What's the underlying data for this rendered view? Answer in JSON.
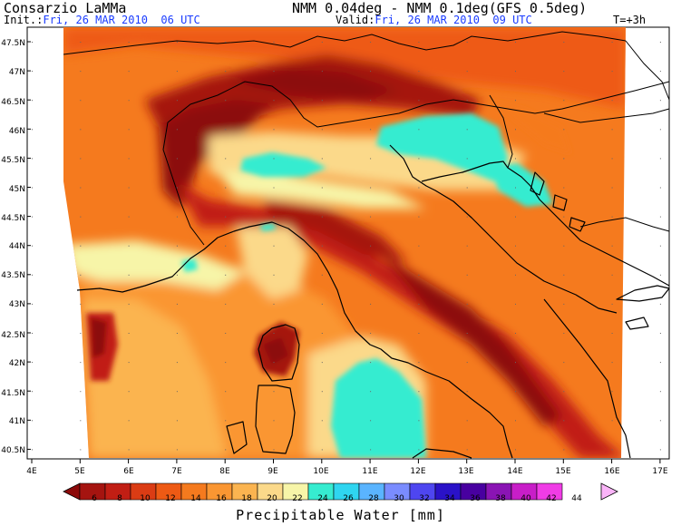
{
  "header": {
    "source": "Consarzio LaMMa",
    "init_label": "Init.:",
    "init_value": "Fri, 26 MAR 2010  06 UTC",
    "model": "NMM 0.04deg - NMM 0.1deg(GFS 0.5deg)",
    "valid_label": "Valid:",
    "valid_value": "Fri, 26 MAR 2010  09 UTC",
    "step": "T=+3h"
  },
  "map": {
    "lat_labels": [
      "47.5N",
      "47N",
      "46.5N",
      "46N",
      "45.5N",
      "45N",
      "44.5N",
      "44N",
      "43.5N",
      "43N",
      "42.5N",
      "42N",
      "41.5N",
      "41N",
      "40.5N"
    ],
    "lon_labels": [
      "4E",
      "5E",
      "6E",
      "7E",
      "8E",
      "9E",
      "10E",
      "11E",
      "12E",
      "13E",
      "14E",
      "15E",
      "16E",
      "17E"
    ]
  },
  "colorbar": {
    "title": "Precipitable Water [mm]",
    "ticks": [
      "6",
      "8",
      "10",
      "12",
      "14",
      "16",
      "18",
      "20",
      "22",
      "24",
      "26",
      "28",
      "30",
      "32",
      "34",
      "36",
      "38",
      "40",
      "42",
      "44"
    ],
    "colors": [
      "#8c0a0a",
      "#a51410",
      "#c11e14",
      "#db3c14",
      "#ee5a14",
      "#f57a1e",
      "#fa9632",
      "#fbb450",
      "#fbd98a",
      "#f7f5a8",
      "#36ecd0",
      "#2fd5f0",
      "#5ab4ff",
      "#7a8cff",
      "#4e46f0",
      "#2a12c8",
      "#4800a0",
      "#8a14b4",
      "#c81ec8",
      "#f03ce6",
      "#fab4f8"
    ]
  }
}
